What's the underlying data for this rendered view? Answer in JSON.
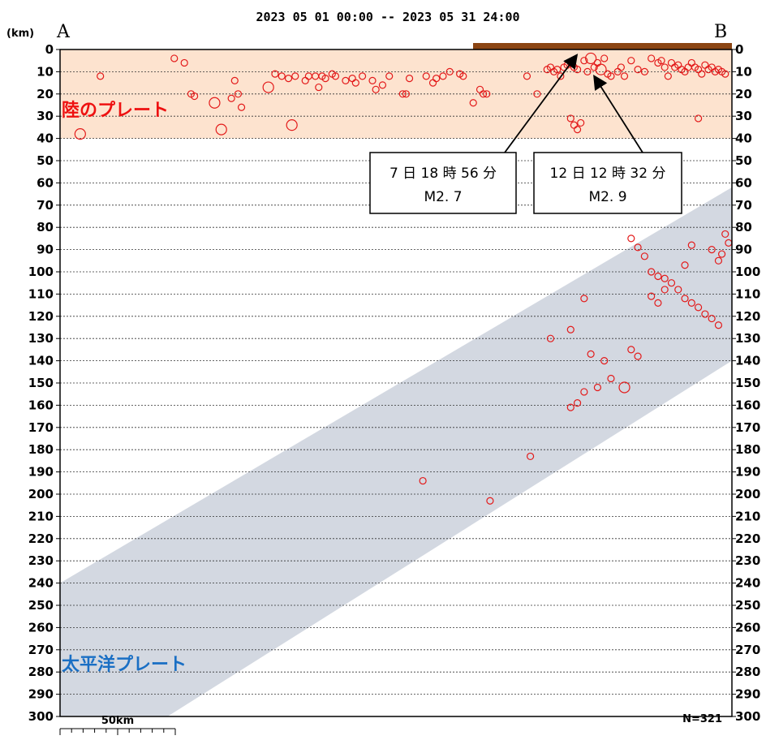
{
  "chart_data": {
    "type": "scatter",
    "title": "2023 05 01 00:00 -- 2023 05 31 24:00",
    "ylabel": "(km)",
    "ylim": [
      0,
      300
    ],
    "y_ticks": [
      0,
      10,
      20,
      30,
      40,
      50,
      60,
      70,
      80,
      90,
      100,
      110,
      120,
      130,
      140,
      150,
      160,
      170,
      180,
      190,
      200,
      210,
      220,
      230,
      240,
      250,
      260,
      270,
      280,
      290,
      300
    ],
    "grid": true,
    "x_end_labels": {
      "left": "A",
      "right": "B"
    },
    "scale_label": "50km",
    "count_label": "N=321",
    "regions": [
      {
        "name": "陸のプレート",
        "color": "#fde3cf",
        "depth_range": [
          0,
          40
        ]
      },
      {
        "name": "太平洋プレート",
        "color": "#d3d8e1"
      }
    ],
    "overlay_bar_color": "#8b4513",
    "annotations": [
      {
        "line1": "7 日 18 時 56 分",
        "line2": "M2. 7"
      },
      {
        "line1": "12 日 12 時 32 分",
        "line2": "M2. 9"
      }
    ],
    "events": {
      "units": "x: relative position along A–B (0–100), y: depth km, m: relative marker size",
      "points": [
        [
          3,
          38,
          3
        ],
        [
          6,
          12,
          2
        ],
        [
          17,
          4,
          2
        ],
        [
          18.5,
          6,
          2
        ],
        [
          19.5,
          20,
          2
        ],
        [
          20,
          21,
          2
        ],
        [
          23,
          24,
          3
        ],
        [
          24,
          36,
          3
        ],
        [
          25.5,
          22,
          2
        ],
        [
          26,
          14,
          2
        ],
        [
          26.5,
          20,
          2
        ],
        [
          27,
          26,
          2
        ],
        [
          31,
          17,
          3
        ],
        [
          32,
          11,
          2
        ],
        [
          34.5,
          34,
          3
        ],
        [
          33,
          12,
          2
        ],
        [
          34,
          13,
          2
        ],
        [
          35,
          12,
          2
        ],
        [
          36.5,
          14,
          2
        ],
        [
          37,
          12,
          2
        ],
        [
          38,
          12,
          2
        ],
        [
          38.5,
          17,
          2
        ],
        [
          39,
          12,
          2
        ],
        [
          39.5,
          13,
          2
        ],
        [
          40.5,
          11,
          2
        ],
        [
          41,
          12,
          2
        ],
        [
          42.5,
          14,
          2
        ],
        [
          43.5,
          13,
          2
        ],
        [
          44,
          15,
          2
        ],
        [
          45,
          12,
          2
        ],
        [
          46.5,
          14,
          2
        ],
        [
          47,
          18,
          2
        ],
        [
          48,
          16,
          2
        ],
        [
          49,
          12,
          2
        ],
        [
          51,
          20,
          2
        ],
        [
          51.5,
          20,
          2
        ],
        [
          52,
          13,
          2
        ],
        [
          54.5,
          12,
          2
        ],
        [
          55.5,
          15,
          2
        ],
        [
          56,
          13,
          2
        ],
        [
          57,
          12,
          2
        ],
        [
          58,
          10,
          2
        ],
        [
          59.5,
          11,
          2
        ],
        [
          60,
          12,
          2
        ],
        [
          61.5,
          24,
          2
        ],
        [
          62.5,
          18,
          2
        ],
        [
          63,
          20,
          2
        ],
        [
          63.5,
          20,
          2
        ],
        [
          69.5,
          12,
          2
        ],
        [
          71,
          20,
          2
        ],
        [
          72.5,
          9,
          2
        ],
        [
          73,
          8,
          2
        ],
        [
          73.5,
          10,
          2
        ],
        [
          74,
          9,
          2
        ],
        [
          74.5,
          12,
          2
        ],
        [
          75,
          8,
          2
        ],
        [
          75.5,
          7,
          2
        ],
        [
          76,
          6,
          2
        ],
        [
          76.5,
          8,
          2
        ],
        [
          77,
          9,
          2
        ],
        [
          76,
          31,
          2
        ],
        [
          76.5,
          34,
          2
        ],
        [
          77,
          36,
          2
        ],
        [
          77.5,
          33,
          2
        ],
        [
          78,
          5,
          2
        ],
        [
          78.5,
          10,
          2
        ],
        [
          79,
          4,
          3
        ],
        [
          79.5,
          8,
          2
        ],
        [
          80,
          6,
          2
        ],
        [
          80.5,
          9,
          3
        ],
        [
          81,
          4,
          2
        ],
        [
          81.5,
          11,
          2
        ],
        [
          82,
          12,
          2
        ],
        [
          83,
          10,
          2
        ],
        [
          83.5,
          8,
          2
        ],
        [
          84,
          12,
          2
        ],
        [
          85,
          5,
          2
        ],
        [
          86,
          9,
          2
        ],
        [
          87,
          10,
          2
        ],
        [
          88,
          4,
          2
        ],
        [
          89,
          6,
          2
        ],
        [
          89.5,
          5,
          2
        ],
        [
          90,
          8,
          2
        ],
        [
          90.5,
          12,
          2
        ],
        [
          91,
          6,
          2
        ],
        [
          91.5,
          8,
          2
        ],
        [
          92,
          7,
          2
        ],
        [
          92.5,
          9,
          2
        ],
        [
          93,
          10,
          2
        ],
        [
          93.5,
          8,
          2
        ],
        [
          94,
          6,
          2
        ],
        [
          94.5,
          8,
          2
        ],
        [
          95,
          9,
          2
        ],
        [
          95.5,
          11,
          2
        ],
        [
          96,
          7,
          2
        ],
        [
          96.5,
          9,
          2
        ],
        [
          97,
          8,
          2
        ],
        [
          97.5,
          10,
          2
        ],
        [
          98,
          9,
          2
        ],
        [
          98.5,
          10,
          2
        ],
        [
          99,
          11,
          2
        ],
        [
          95,
          31,
          2
        ],
        [
          85,
          85,
          2
        ],
        [
          86,
          89,
          2
        ],
        [
          87,
          93,
          2
        ],
        [
          88,
          100,
          2
        ],
        [
          89,
          102,
          2
        ],
        [
          90,
          103,
          2
        ],
        [
          91,
          105,
          2
        ],
        [
          92,
          108,
          2
        ],
        [
          93,
          112,
          2
        ],
        [
          94,
          114,
          2
        ],
        [
          95,
          116,
          2
        ],
        [
          96,
          119,
          2
        ],
        [
          97,
          121,
          2
        ],
        [
          98,
          124,
          2
        ],
        [
          99,
          83,
          2
        ],
        [
          99.5,
          87,
          2
        ],
        [
          98,
          95,
          2
        ],
        [
          97,
          90,
          2
        ],
        [
          98.5,
          92,
          2
        ],
        [
          94,
          88,
          2
        ],
        [
          93,
          97,
          2
        ],
        [
          88,
          111,
          2
        ],
        [
          89,
          114,
          2
        ],
        [
          90,
          108,
          2
        ],
        [
          78,
          112,
          2
        ],
        [
          76,
          126,
          2
        ],
        [
          73,
          130,
          2
        ],
        [
          79,
          137,
          2
        ],
        [
          81,
          140,
          2
        ],
        [
          82,
          148,
          2
        ],
        [
          80,
          152,
          2
        ],
        [
          78,
          154,
          2
        ],
        [
          77,
          159,
          2
        ],
        [
          76,
          161,
          2
        ],
        [
          85,
          135,
          2
        ],
        [
          86,
          138,
          2
        ],
        [
          84,
          152,
          3
        ],
        [
          70,
          183,
          2
        ],
        [
          54,
          194,
          2
        ],
        [
          64,
          203,
          2
        ]
      ]
    }
  }
}
